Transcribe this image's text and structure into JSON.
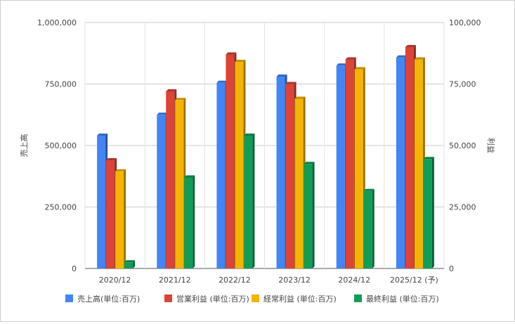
{
  "chart_data": {
    "type": "bar",
    "categories": [
      "2020/12",
      "2021/12",
      "2022/12",
      "2023/12",
      "2024/12",
      "2025/12 (予)"
    ],
    "y_left": {
      "label": "売上高",
      "ylim": [
        0,
        1000000
      ],
      "ticks": [
        "0",
        "250,000",
        "500,000",
        "750,000",
        "1,000,000"
      ],
      "tick_values": [
        0,
        250000,
        500000,
        750000,
        1000000
      ]
    },
    "y_right": {
      "label": "利益",
      "ylim": [
        0,
        100000
      ],
      "ticks": [
        "0",
        "25,000",
        "50,000",
        "75,000",
        "100,000"
      ],
      "tick_values": [
        0,
        25000,
        50000,
        75000,
        100000
      ]
    },
    "series": [
      {
        "name": "売上高(単位:百万)",
        "axis": "left",
        "color": "#4285f4",
        "values": [
          540000,
          625000,
          755000,
          780000,
          825000,
          858000
        ]
      },
      {
        "name": "営業利益 (単位:百万)",
        "axis": "right",
        "color": "#db4437",
        "values": [
          44000,
          72000,
          87000,
          75000,
          85000,
          90000
        ]
      },
      {
        "name": "経常利益 (単位:百万)",
        "axis": "right",
        "color": "#f4b400",
        "values": [
          39500,
          68500,
          84000,
          69000,
          81000,
          85000
        ]
      },
      {
        "name": "最終利益 (単位:百万)",
        "axis": "right",
        "color": "#0f9d58",
        "values": [
          2500,
          37000,
          54000,
          42500,
          31500,
          44500
        ]
      }
    ],
    "grid": true,
    "legend_position": "bottom"
  }
}
